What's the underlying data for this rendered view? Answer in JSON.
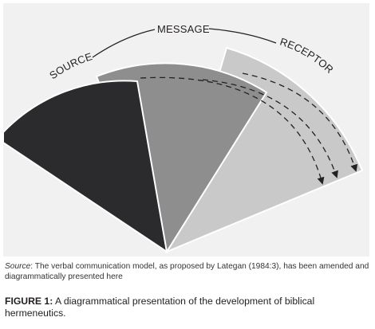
{
  "diagram": {
    "labels": {
      "source": "SOURCE",
      "message": "MESSAGE",
      "receptor": "RECEPTOR"
    },
    "colors": {
      "frame": "#f1f1f1",
      "source_wedge": "#2b2b2e",
      "message_wedge": "#8e8e8e",
      "receptor_wedge": "#c9c9c9",
      "outline": "#ffffff",
      "arrow": "#222222"
    }
  },
  "source_note": {
    "label": "Source",
    "text": ": The verbal communication model, as proposed by Lategan (1984:3), has been amended and diagrammatically presented here"
  },
  "caption": {
    "label": "FIGURE 1:",
    "text": " A diagrammatical presentation of the development of biblical hermeneutics."
  }
}
